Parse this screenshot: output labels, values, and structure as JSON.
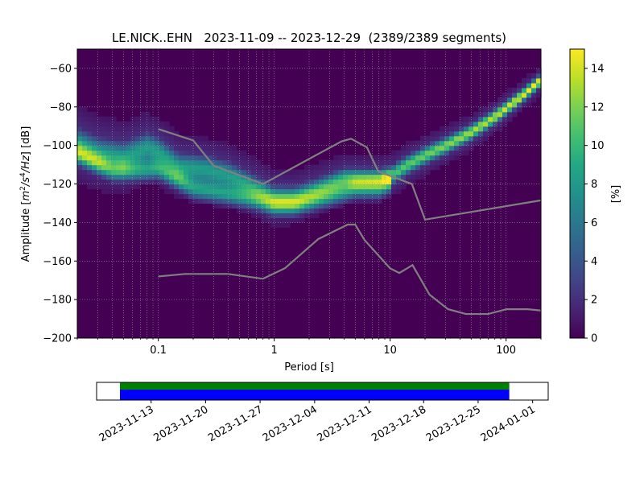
{
  "chart_data": [
    {
      "type": "heatmap",
      "title": "LE.NICK..EHN   2023-11-09 -- 2023-12-29  (2389/2389 segments)",
      "xlabel": "Period [s]",
      "ylabel": "Amplitude [m²/s⁴/Hz] [dB]",
      "ylabel_main": "Amplitude [",
      "ylabel_unit_m": "m",
      "ylabel_unit_m_sup": "2",
      "ylabel_unit_s": "/s",
      "ylabel_unit_s_sup": "4",
      "ylabel_unit_hz": "/Hz",
      "ylabel_tail": "] [dB]",
      "x_scale": "log",
      "xlim": [
        0.02,
        200
      ],
      "ylim": [
        -200,
        -50
      ],
      "x_ticks": [
        0.1,
        1,
        10,
        100
      ],
      "x_tick_labels": [
        "0.1",
        "1",
        "10",
        "100"
      ],
      "y_ticks": [
        -200,
        -180,
        -160,
        -140,
        -120,
        -100,
        -80,
        -60
      ],
      "y_tick_labels": [
        "−200",
        "−180",
        "−160",
        "−140",
        "−120",
        "−100",
        "−80",
        "−60"
      ],
      "grid": true,
      "colormap": "viridis",
      "colorbar": {
        "label": "[%]",
        "range": [
          0,
          15
        ],
        "ticks": [
          0,
          2,
          4,
          6,
          8,
          10,
          12,
          14
        ],
        "tick_labels": [
          "0",
          "2",
          "4",
          "6",
          "8",
          "10",
          "12",
          "14"
        ]
      },
      "distribution": {
        "center_line": [
          [
            0.02,
            -99
          ],
          [
            0.03,
            -104
          ],
          [
            0.05,
            -106
          ],
          [
            0.08,
            -101
          ],
          [
            0.1,
            -103
          ],
          [
            0.15,
            -111
          ],
          [
            0.25,
            -112
          ],
          [
            0.4,
            -115
          ],
          [
            0.6,
            -120
          ],
          [
            1.0,
            -127
          ],
          [
            1.5,
            -127
          ],
          [
            2.5,
            -122
          ],
          [
            4.0,
            -117
          ],
          [
            6.0,
            -117
          ],
          [
            8.0,
            -117
          ],
          [
            10,
            -116
          ],
          [
            14,
            -110
          ],
          [
            20,
            -105
          ],
          [
            30,
            -100
          ],
          [
            50,
            -93
          ],
          [
            80,
            -85
          ],
          [
            120,
            -77
          ],
          [
            200,
            -66
          ]
        ],
        "lower_line": [
          [
            0.02,
            -104
          ],
          [
            0.04,
            -113
          ],
          [
            0.06,
            -113
          ],
          [
            0.1,
            -112
          ],
          [
            0.2,
            -122
          ],
          [
            0.4,
            -125
          ],
          [
            0.7,
            -128
          ],
          [
            1.0,
            -131
          ],
          [
            1.5,
            -131
          ],
          [
            3.0,
            -126
          ],
          [
            5.0,
            -122
          ],
          [
            8.0,
            -122
          ],
          [
            10,
            -119
          ]
        ],
        "peak_percent": 15
      },
      "noise_models": [
        {
          "points": [
            [
              0.1,
              -91.5
            ],
            [
              0.2,
              -97.4
            ],
            [
              0.3,
              -110.5
            ],
            [
              0.8,
              -120.0
            ],
            [
              3.8,
              -97.9
            ],
            [
              4.6,
              -96.5
            ],
            [
              6.3,
              -101.0
            ],
            [
              7.9,
              -113.5
            ],
            [
              15.4,
              -120.0
            ],
            [
              20,
              -138.5
            ],
            [
              200,
              -128.5
            ]
          ],
          "color": "#808080"
        },
        {
          "points": [
            [
              0.1,
              -168.0
            ],
            [
              0.17,
              -166.7
            ],
            [
              0.4,
              -166.7
            ],
            [
              0.8,
              -169.2
            ],
            [
              1.24,
              -163.7
            ],
            [
              2.4,
              -148.6
            ],
            [
              4.3,
              -141.1
            ],
            [
              5.0,
              -141.1
            ],
            [
              6.0,
              -149.0
            ],
            [
              10.0,
              -163.8
            ],
            [
              12.0,
              -166.2
            ],
            [
              15.6,
              -162.1
            ],
            [
              21.9,
              -177.5
            ],
            [
              31.6,
              -185.0
            ],
            [
              45.0,
              -187.5
            ],
            [
              70.0,
              -187.5
            ],
            [
              101.0,
              -185.0
            ],
            [
              154.0,
              -185.0
            ],
            [
              200.0,
              -185.7
            ]
          ],
          "color": "#808080"
        }
      ]
    },
    {
      "type": "timeline",
      "data_start": "2023-11-09",
      "data_end": "2023-12-29",
      "axis_start": "2023-11-06",
      "axis_end": "2024-01-03",
      "tick_labels": [
        "2023-11-13",
        "2023-11-20",
        "2023-11-27",
        "2023-12-04",
        "2023-12-11",
        "2023-12-18",
        "2023-12-25",
        "2024-01-01"
      ],
      "colors": {
        "coverage": "#0000ff",
        "processed": "#008000"
      }
    }
  ]
}
